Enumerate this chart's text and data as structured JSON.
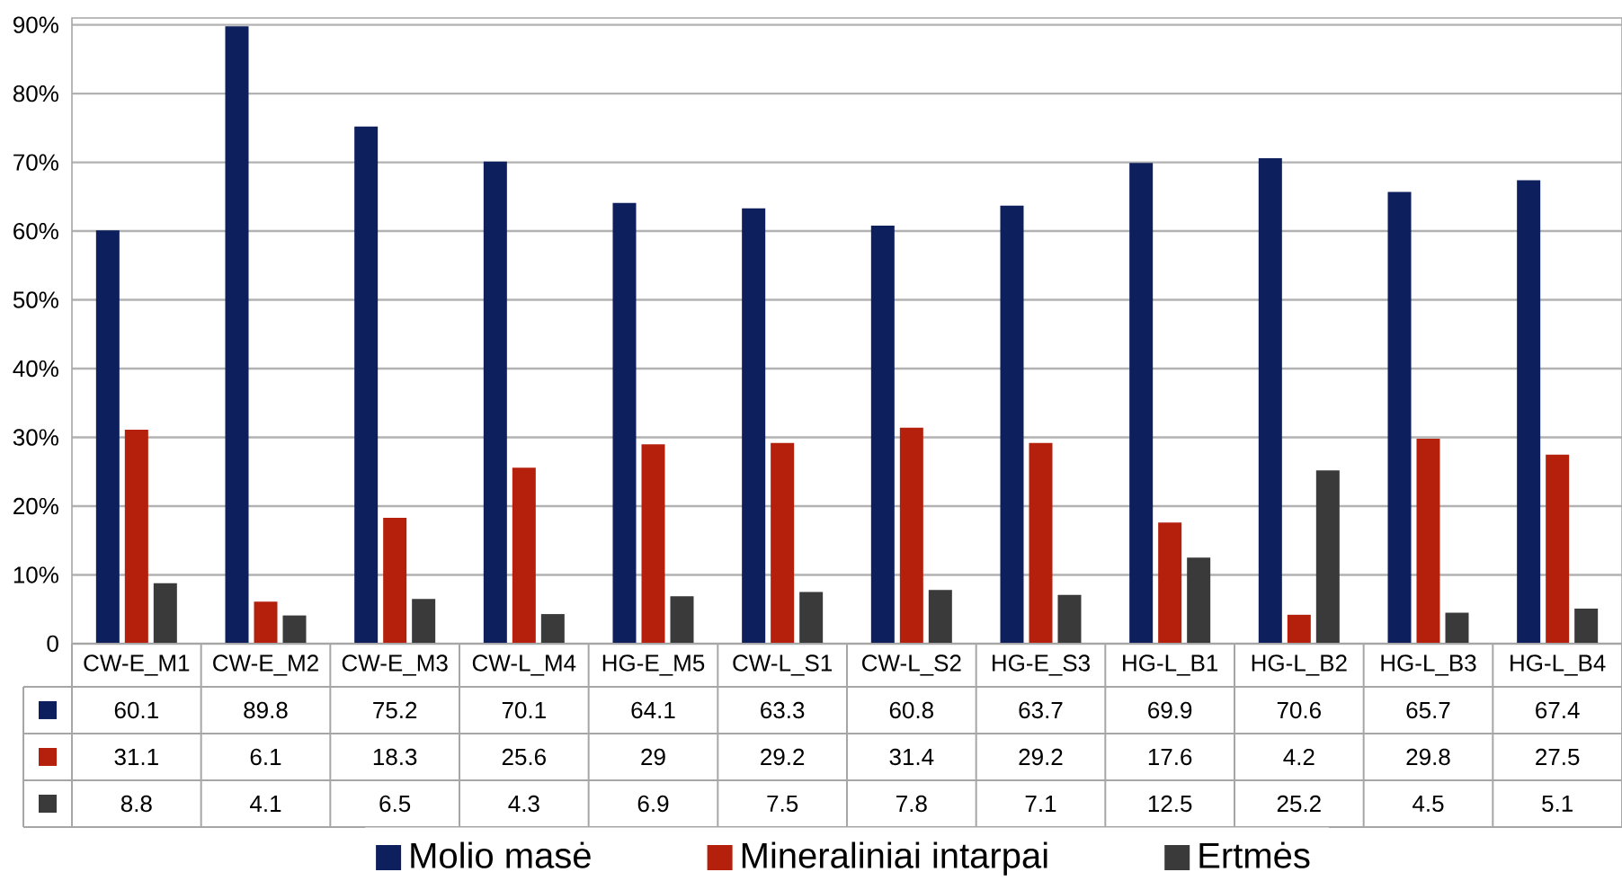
{
  "chart_data": {
    "type": "bar",
    "categories": [
      "CW-E_M1",
      "CW-E_M2",
      "CW-E_M3",
      "CW-L_M4",
      "HG-E_M5",
      "CW-L_S1",
      "CW-L_S2",
      "HG-E_S3",
      "HG-L_B1",
      "HG-L_B2",
      "HG-L_B3",
      "HG-L_B4"
    ],
    "series": [
      {
        "name": "Molio masė",
        "color": "#0d1f5c",
        "values": [
          60.1,
          89.8,
          75.2,
          70.1,
          64.1,
          63.3,
          60.8,
          63.7,
          69.9,
          70.6,
          65.7,
          67.4
        ]
      },
      {
        "name": "Mineraliniai intarpai",
        "color": "#b5200d",
        "values": [
          31.1,
          6.1,
          18.3,
          25.6,
          29,
          29.2,
          31.4,
          29.2,
          17.6,
          4.2,
          29.8,
          27.5
        ]
      },
      {
        "name": "Ertmės",
        "color": "#3a3a3a",
        "values": [
          8.8,
          4.1,
          6.5,
          4.3,
          6.9,
          7.5,
          7.8,
          7.1,
          12.5,
          25.2,
          4.5,
          5.1
        ]
      }
    ],
    "ylim": [
      0,
      91
    ],
    "yticks": [
      0,
      {
        "value": 10,
        "label": "10%"
      },
      {
        "value": 20,
        "label": "20%"
      },
      {
        "value": 30,
        "label": "30%"
      },
      {
        "value": 40,
        "label": "40%"
      },
      {
        "value": 50,
        "label": "50%"
      },
      {
        "value": 60,
        "label": "60%"
      },
      {
        "value": 70,
        "label": "70%"
      },
      {
        "value": 80,
        "label": "80%"
      },
      {
        "value": 90,
        "label": "90%"
      }
    ],
    "grid": "y",
    "legend": "bottom",
    "data_labels": true
  }
}
